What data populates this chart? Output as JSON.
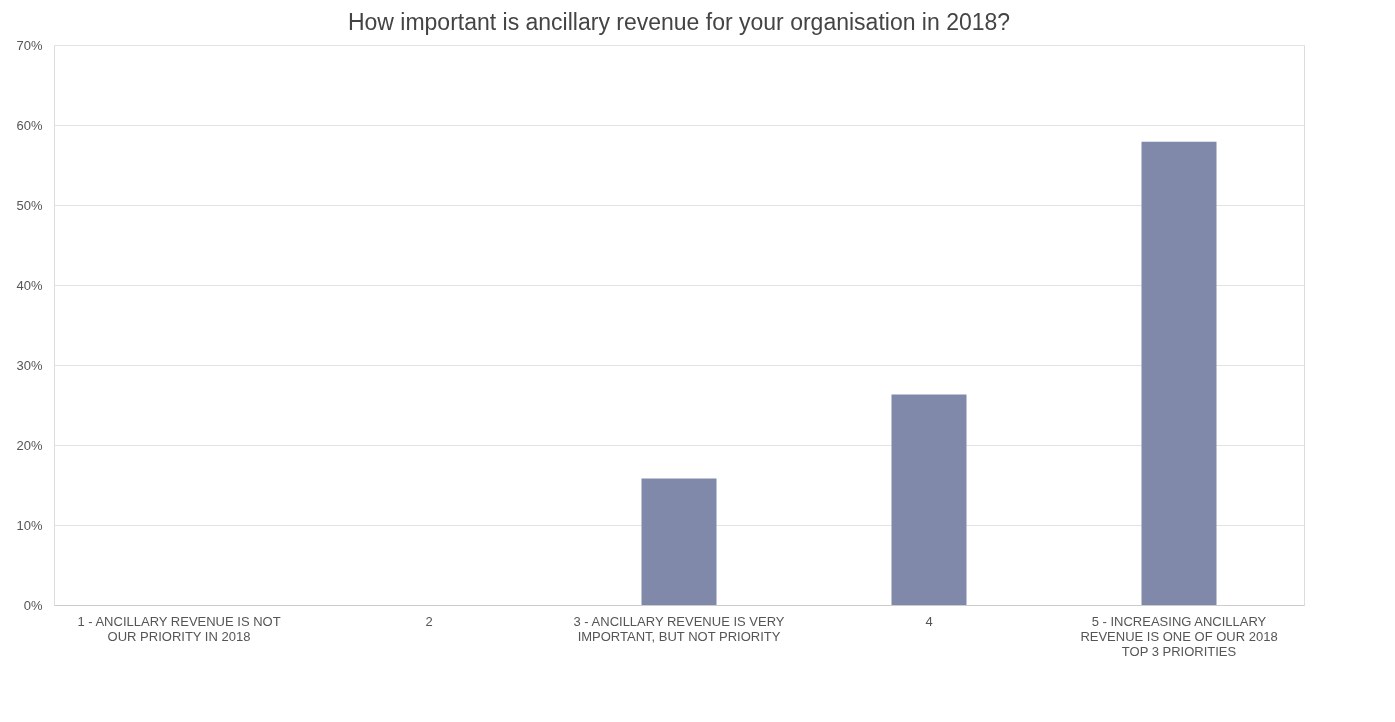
{
  "chart_data": {
    "type": "bar",
    "title": "How important is ancillary revenue for your organisation in 2018?",
    "categories": [
      "1 - ANCILLARY REVENUE IS NOT OUR PRIORITY IN 2018",
      "2",
      "3 - ANCILLARY REVENUE IS VERY IMPORTANT, BUT NOT PRIORITY",
      "4",
      "5 - INCREASING ANCILLARY REVENUE IS ONE OF OUR 2018 TOP 3 PRIORITIES"
    ],
    "values": [
      0,
      0,
      15.8,
      26.3,
      57.9
    ],
    "color": "#8089aa",
    "ylim": [
      0,
      70
    ],
    "yticks": [
      {
        "value": 0,
        "label": "0%"
      },
      {
        "value": 10,
        "label": "10%"
      },
      {
        "value": 20,
        "label": "20%"
      },
      {
        "value": 30,
        "label": "30%"
      },
      {
        "value": 40,
        "label": "40%"
      },
      {
        "value": 50,
        "label": "50%"
      },
      {
        "value": 60,
        "label": "60%"
      },
      {
        "value": 70,
        "label": "70%"
      }
    ],
    "grid": "y"
  }
}
